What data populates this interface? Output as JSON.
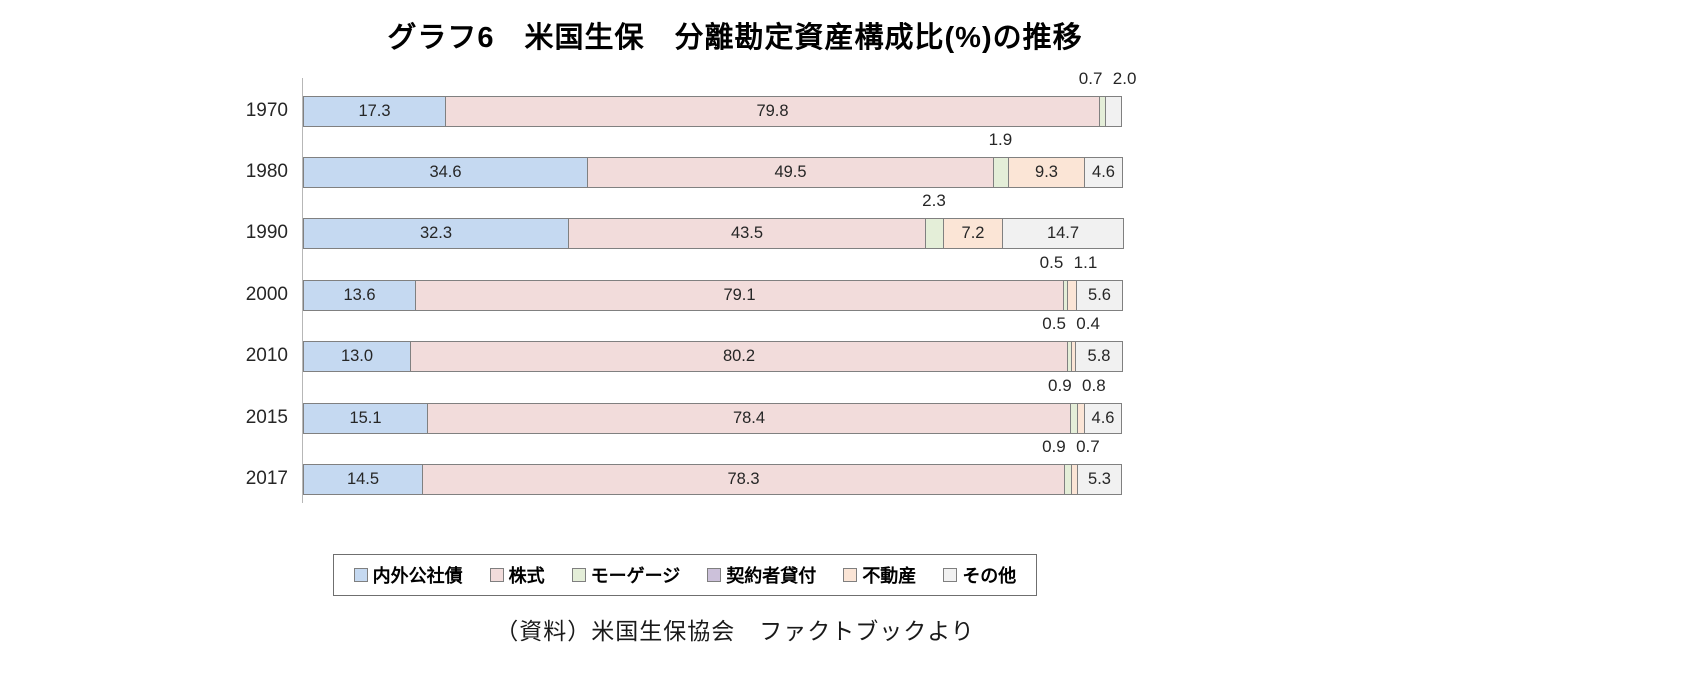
{
  "title": "グラフ6　米国生保　分離勘定資産構成比(%)の推移",
  "source": "（資料）米国生保協会　ファクトブックより",
  "colors": {
    "segment_border": "#808080",
    "axis_line": "#b7b7b7",
    "value_text": "#262626"
  },
  "chart_data": {
    "type": "bar",
    "orientation": "horizontal",
    "stacked": true,
    "unit": "%",
    "title": "グラフ6　米国生保　分離勘定資産構成比(%)の推移",
    "categories": [
      "1970",
      "1980",
      "1990",
      "2000",
      "2010",
      "2015",
      "2017"
    ],
    "series": [
      {
        "name": "内外公社債",
        "key": "bonds",
        "color": "#c5d9f1",
        "values": [
          17.3,
          34.6,
          32.3,
          13.6,
          13.0,
          15.1,
          14.5
        ]
      },
      {
        "name": "株式",
        "key": "equities",
        "color": "#f2dcdb",
        "values": [
          79.8,
          49.5,
          43.5,
          79.1,
          80.2,
          78.4,
          78.3
        ]
      },
      {
        "name": "モーゲージ",
        "key": "mortgage",
        "color": "#e4eed8",
        "values": [
          0.7,
          1.9,
          2.3,
          0.5,
          0.5,
          0.9,
          0.9
        ]
      },
      {
        "name": "契約者貸付",
        "key": "policy-loans",
        "color": "#ccc1da",
        "values": [
          0,
          0,
          0,
          0,
          0,
          0,
          0
        ]
      },
      {
        "name": "不動産",
        "key": "real-estate",
        "color": "#fbe5d6",
        "values": [
          0,
          9.3,
          7.2,
          1.1,
          0.4,
          0.8,
          0.7
        ]
      },
      {
        "name": "その他",
        "key": "other",
        "color": "#f1f1f1",
        "values": [
          2.0,
          4.6,
          14.7,
          5.6,
          5.8,
          4.6,
          5.3
        ]
      }
    ],
    "xlim": [
      0,
      100
    ],
    "grid": false,
    "legend_position": "bottom",
    "value_labels": true,
    "source": "（資料）米国生保協会　ファクトブックより"
  }
}
